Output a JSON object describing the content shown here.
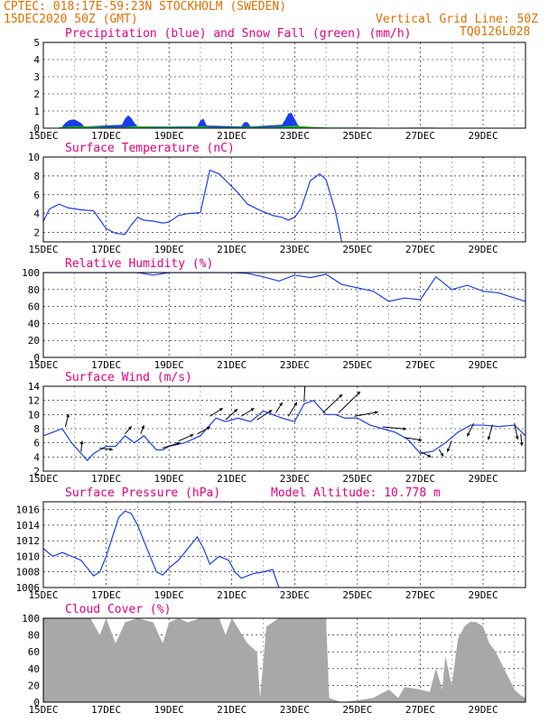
{
  "header": {
    "line1_left": "CPTEC:  018:17E-59:23N  STOCKHOLM (SWEDEN)",
    "line2_left": "15DEC2020 50Z (GMT)",
    "line2_right": "Vertical Grid Line: 50Z",
    "code": "TQ0126L028"
  },
  "colors": {
    "header": "#e07000",
    "title": "#e0007f",
    "blue": "#1a3cf0",
    "green": "#18c018",
    "gray": "#a8a8a8"
  },
  "x_tick_labels": [
    "15DEC",
    "17DEC",
    "19DEC",
    "21DEC",
    "23DEC",
    "25DEC",
    "27DEC",
    "29DEC"
  ],
  "chart_data": [
    {
      "id": "precip",
      "type": "area",
      "title": "Precipitation (blue) and Snow Fall (green) (mm/h)",
      "x_start": "15DEC",
      "x_end_days": 15.35,
      "ylim": [
        0,
        5
      ],
      "yticks": [
        "0",
        "1",
        "2",
        "3",
        "4",
        "5"
      ],
      "series": [
        {
          "name": "Precipitation",
          "color": "#1a3cf0",
          "x": [
            0.6,
            0.7,
            0.8,
            0.9,
            1.0,
            1.1,
            1.2,
            1.3,
            2.5,
            2.6,
            2.7,
            2.8,
            2.9,
            3.0,
            4.9,
            5.0,
            5.1,
            5.2,
            6.3,
            6.4,
            6.5,
            6.6,
            7.6,
            7.7,
            7.8,
            7.9,
            8.0,
            8.1,
            8.2
          ],
          "values": [
            0.1,
            0.3,
            0.45,
            0.5,
            0.5,
            0.4,
            0.3,
            0.1,
            0.2,
            0.55,
            0.75,
            0.6,
            0.3,
            0.1,
            0.1,
            0.45,
            0.55,
            0.15,
            0.1,
            0.35,
            0.35,
            0.1,
            0.2,
            0.5,
            0.85,
            0.9,
            0.55,
            0.2,
            0.05
          ]
        },
        {
          "name": "Snow Fall",
          "color": "#18c018",
          "x": [
            0.5,
            1.0,
            1.5,
            2.0,
            2.5,
            3.0,
            3.5,
            4.0,
            4.5,
            5.0,
            5.5,
            6.0,
            6.5,
            7.0,
            7.5,
            8.0,
            8.5,
            9.0,
            10.0,
            11.0,
            12.0,
            12.5
          ],
          "values": [
            0.05,
            0.1,
            0.1,
            0.06,
            0.05,
            0.12,
            0.08,
            0.08,
            0.06,
            0.1,
            0.05,
            0.06,
            0.08,
            0.06,
            0.08,
            0.15,
            0.08,
            0.04,
            0.04,
            0.02,
            0.04,
            0.03
          ]
        }
      ]
    },
    {
      "id": "temp",
      "type": "line",
      "title": "Surface Temperature (nC)",
      "ylim": [
        1,
        10
      ],
      "yticks": [
        "2",
        "4",
        "6",
        "8",
        "10"
      ],
      "series": [
        {
          "color": "#1a3cf0",
          "x": [
            0,
            0.2,
            0.5,
            0.8,
            1.2,
            1.6,
            2.0,
            2.3,
            2.6,
            2.8,
            3.0,
            3.2,
            3.5,
            3.8,
            4.0,
            4.3,
            4.6,
            5.0,
            5.3,
            5.6,
            5.9,
            6.2,
            6.5,
            6.8,
            7.0,
            7.3,
            7.6,
            7.8,
            8.0,
            8.2,
            8.5,
            8.8,
            9.0,
            9.3,
            9.5
          ],
          "values": [
            3.2,
            4.5,
            5.0,
            4.6,
            4.4,
            4.3,
            2.4,
            1.9,
            1.8,
            2.8,
            3.6,
            3.3,
            3.2,
            3.0,
            3.1,
            3.8,
            4.0,
            4.1,
            8.6,
            8.2,
            7.2,
            6.2,
            5.0,
            4.5,
            4.2,
            3.8,
            3.6,
            3.3,
            3.6,
            4.5,
            7.5,
            8.2,
            7.6,
            4.2,
            1.0
          ]
        }
      ]
    },
    {
      "id": "rh",
      "type": "line",
      "title": "Relative Humidity (%)",
      "ylim": [
        0,
        100
      ],
      "yticks": [
        "0",
        "20",
        "40",
        "60",
        "80",
        "100"
      ],
      "series": [
        {
          "color": "#1a3cf0",
          "x": [
            0,
            1.0,
            2.0,
            3.0,
            3.5,
            4.0,
            4.5,
            5.0,
            6.0,
            6.5,
            7.0,
            7.5,
            8.0,
            8.5,
            9.0,
            9.5,
            10.0,
            10.5,
            11.0,
            11.5,
            12.0,
            12.5,
            13.0,
            13.5,
            14.0,
            14.5,
            15.0,
            15.35
          ],
          "values": [
            100,
            100,
            100,
            100,
            97,
            100,
            100,
            100,
            100,
            99,
            95,
            90,
            97,
            94,
            98,
            86,
            82,
            78,
            66,
            70,
            68,
            95,
            80,
            85,
            78,
            76,
            70,
            66
          ]
        }
      ]
    },
    {
      "id": "wind",
      "type": "line",
      "title": "Surface Wind (m/s)",
      "ylim": [
        2,
        14
      ],
      "yticks": [
        "2",
        "4",
        "6",
        "8",
        "10",
        "12",
        "14"
      ],
      "series": [
        {
          "color": "#1a3cf0",
          "x": [
            0,
            0.3,
            0.6,
            0.9,
            1.2,
            1.4,
            1.6,
            1.8,
            2.0,
            2.3,
            2.6,
            2.9,
            3.2,
            3.4,
            3.6,
            3.8,
            4.0,
            4.5,
            5.0,
            5.5,
            5.8,
            6.2,
            6.6,
            7.0,
            7.3,
            7.6,
            8.0,
            8.3,
            8.6,
            9.0,
            9.3,
            9.6,
            10.0,
            10.4,
            10.8,
            11.2,
            11.6,
            12.0,
            12.4,
            12.8,
            13.2,
            13.6,
            14.0,
            14.5,
            15.0,
            15.35
          ],
          "values": [
            7,
            7.5,
            8,
            6,
            4.5,
            3.5,
            4.5,
            5,
            5.5,
            5.5,
            7,
            6,
            7,
            6,
            5,
            5,
            5.5,
            6,
            7,
            9.5,
            9,
            9.5,
            9,
            10.5,
            10,
            9.5,
            9,
            11.5,
            12,
            10,
            10,
            9.5,
            9.5,
            8.5,
            8,
            7.5,
            6.5,
            4.5,
            4.8,
            6,
            7.5,
            8.5,
            8.5,
            8.3,
            8.5,
            7
          ]
        }
      ],
      "arrows": [
        {
          "x": 0.7,
          "dx": 0.15,
          "dy": 2.4
        },
        {
          "x": 1.2,
          "dx": 0.05,
          "dy": 2.0
        },
        {
          "x": 1.8,
          "dx": 0.6,
          "dy": -0.3
        },
        {
          "x": 2.6,
          "dx": 0.3,
          "dy": 1.4
        },
        {
          "x": 3.1,
          "dx": 0.15,
          "dy": 1.6
        },
        {
          "x": 3.8,
          "dx": 0.8,
          "dy": 1.0
        },
        {
          "x": 4.3,
          "dx": 0.7,
          "dy": 1.2
        },
        {
          "x": 4.9,
          "dx": 0.6,
          "dy": 1.3
        },
        {
          "x": 5.3,
          "dx": 0.6,
          "dy": 1.5
        },
        {
          "x": 5.8,
          "dx": 0.55,
          "dy": 2.0
        },
        {
          "x": 6.3,
          "dx": 0.6,
          "dy": 1.5
        },
        {
          "x": 6.8,
          "dx": 0.7,
          "dy": 1.8
        },
        {
          "x": 7.4,
          "dx": 0.3,
          "dy": 1.9
        },
        {
          "x": 7.8,
          "dx": 0.4,
          "dy": 2.6
        },
        {
          "x": 8.3,
          "dx": 0.05,
          "dy": 3.6
        },
        {
          "x": 8.9,
          "dx": 0.9,
          "dy": 3.4
        },
        {
          "x": 9.4,
          "dx": 1.0,
          "dy": 3.9
        },
        {
          "x": 9.9,
          "dx": 1.1,
          "dy": 0.8
        },
        {
          "x": 10.8,
          "dx": 1.1,
          "dy": -0.4
        },
        {
          "x": 11.5,
          "dx": 0.8,
          "dy": -0.5
        },
        {
          "x": 12.0,
          "dx": 0.5,
          "dy": -1.0
        },
        {
          "x": 12.6,
          "dx": 0.2,
          "dy": -1.3
        },
        {
          "x": 13.0,
          "dx": -0.2,
          "dy": -2.0
        },
        {
          "x": 13.7,
          "dx": -0.3,
          "dy": -2.4
        },
        {
          "x": 14.3,
          "dx": -0.2,
          "dy": -2.8
        },
        {
          "x": 15.0,
          "dx": 0.15,
          "dy": -3.0
        },
        {
          "x": 15.2,
          "dx": 0.05,
          "dy": -2.2
        }
      ]
    },
    {
      "id": "pressure",
      "type": "line",
      "title": "Surface Pressure (hPa)",
      "subtitle": "Model Altitude: 10.778 m",
      "ylim": [
        1006,
        1017
      ],
      "yticks": [
        "1006",
        "1008",
        "1010",
        "1012",
        "1014",
        "1016"
      ],
      "series": [
        {
          "color": "#1a3cf0",
          "x": [
            0,
            0.3,
            0.6,
            0.9,
            1.2,
            1.4,
            1.6,
            1.8,
            2.0,
            2.2,
            2.4,
            2.6,
            2.8,
            3.0,
            3.2,
            3.4,
            3.6,
            3.8,
            4.0,
            4.3,
            4.6,
            4.9,
            5.1,
            5.3,
            5.6,
            5.9,
            6.1,
            6.3,
            6.5,
            6.7,
            7.0,
            7.3,
            7.5
          ],
          "values": [
            1011,
            1010,
            1010.5,
            1010,
            1009.5,
            1008.5,
            1007.5,
            1008,
            1010,
            1012.5,
            1015,
            1015.8,
            1015.5,
            1014,
            1012,
            1010,
            1008,
            1007.6,
            1008.5,
            1009.5,
            1011,
            1012.5,
            1011,
            1009,
            1010,
            1009.5,
            1008,
            1007.2,
            1007.5,
            1007.8,
            1008,
            1008.3,
            1006
          ]
        }
      ]
    },
    {
      "id": "cloud",
      "type": "area",
      "title": "Cloud Cover (%)",
      "ylim": [
        0,
        100
      ],
      "yticks": [
        "0",
        "20",
        "40",
        "60",
        "80",
        "100"
      ],
      "series": [
        {
          "color": "#a8a8a8",
          "x": [
            0,
            1.5,
            1.8,
            2.0,
            2.3,
            2.6,
            3.0,
            3.5,
            3.8,
            4.0,
            4.3,
            4.6,
            5.0,
            5.6,
            5.8,
            6.0,
            6.5,
            6.8,
            6.9,
            7.1,
            7.5,
            7.7,
            9.0,
            9.1,
            9.5,
            10.0,
            10.5,
            11.0,
            11.3,
            11.5,
            12.0,
            12.3,
            12.5,
            12.7,
            12.8,
            13.0,
            13.2,
            13.4,
            13.6,
            13.8,
            14.0,
            14.2,
            14.4,
            14.6,
            14.8,
            15.0,
            15.2,
            15.35
          ],
          "values": [
            100,
            100,
            80,
            100,
            70,
            95,
            100,
            95,
            70,
            95,
            100,
            95,
            100,
            100,
            80,
            100,
            70,
            60,
            5,
            90,
            100,
            100,
            100,
            5,
            0,
            2,
            5,
            15,
            5,
            18,
            15,
            12,
            40,
            15,
            55,
            20,
            75,
            90,
            96,
            95,
            90,
            70,
            60,
            45,
            30,
            15,
            8,
            5
          ]
        }
      ]
    }
  ]
}
